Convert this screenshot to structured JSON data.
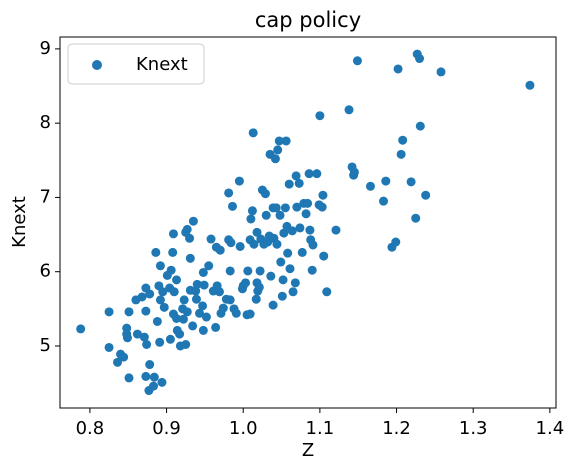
{
  "chart_data": {
    "type": "scatter",
    "title": "cap policy",
    "x_label": "Z",
    "y_label": "Knext",
    "legend": "upper left",
    "x": [
      0.788,
      0.825,
      0.825,
      0.836,
      0.84,
      0.844,
      0.848,
      0.848,
      0.849,
      0.851,
      0.851,
      0.86,
      0.862,
      0.868,
      0.871,
      0.873,
      0.873,
      0.873,
      0.874,
      0.877,
      0.878,
      0.878,
      0.883,
      0.884,
      0.886,
      0.888,
      0.89,
      0.891,
      0.892,
      0.892,
      0.894,
      0.895,
      0.897,
      0.901,
      0.904,
      0.905,
      0.906,
      0.908,
      0.909,
      0.909,
      0.91,
      0.913,
      0.913,
      0.914,
      0.917,
      0.918,
      0.921,
      0.922,
      0.923,
      0.925,
      0.925,
      0.927,
      0.927,
      0.93,
      0.931,
      0.931,
      0.934,
      0.935,
      0.938,
      0.939,
      0.94,
      0.943,
      0.947,
      0.948,
      0.948,
      0.949,
      0.952,
      0.955,
      0.958,
      0.961,
      0.964,
      0.965,
      0.966,
      0.969,
      0.97,
      0.971,
      0.974,
      0.978,
      0.981,
      0.981,
      0.983,
      0.983,
      0.984,
      0.986,
      0.988,
      0.991,
      0.995,
      0.996,
      0.999,
      1.0,
      1.003,
      1.005,
      1.006,
      1.009,
      1.009,
      1.01,
      1.012,
      1.013,
      1.014,
      1.017,
      1.018,
      1.018,
      1.019,
      1.021,
      1.022,
      1.023,
      1.025,
      1.027,
      1.029,
      1.03,
      1.032,
      1.034,
      1.035,
      1.036,
      1.039,
      1.039,
      1.04,
      1.042,
      1.043,
      1.044,
      1.045,
      1.047,
      1.048,
      1.049,
      1.051,
      1.052,
      1.053,
      1.055,
      1.056,
      1.057,
      1.058,
      1.06,
      1.061,
      1.064,
      1.065,
      1.068,
      1.069,
      1.07,
      1.073,
      1.074,
      1.077,
      1.079,
      1.082,
      1.084,
      1.086,
      1.087,
      1.088,
      1.09,
      1.091,
      1.096,
      1.099,
      1.1,
      1.103,
      1.104,
      1.105,
      1.109,
      1.121,
      1.138,
      1.142,
      1.144,
      1.145,
      1.149,
      1.166,
      1.183,
      1.186,
      1.194,
      1.199,
      1.202,
      1.206,
      1.208,
      1.219,
      1.225,
      1.227,
      1.23,
      1.231,
      1.238,
      1.258,
      1.374
    ],
    "series": [
      {
        "name": "Knext",
        "color": "#1f77b4",
        "values": [
          5.23,
          5.46,
          4.98,
          4.78,
          4.89,
          4.85,
          5.24,
          5.16,
          5.11,
          5.46,
          4.57,
          5.62,
          5.16,
          5.66,
          5.12,
          5.47,
          5.78,
          4.59,
          5.02,
          4.4,
          4.75,
          5.7,
          4.46,
          4.58,
          6.26,
          5.33,
          5.81,
          5.05,
          6.08,
          5.62,
          4.51,
          5.73,
          5.52,
          5.95,
          5.78,
          5.09,
          6.02,
          6.26,
          6.51,
          5.43,
          5.73,
          5.89,
          5.37,
          5.21,
          5.16,
          5.0,
          5.5,
          5.36,
          5.62,
          6.53,
          5.02,
          6.57,
          5.46,
          6.45,
          5.75,
          6.18,
          5.27,
          6.68,
          5.74,
          5.63,
          5.83,
          5.44,
          5.54,
          5.99,
          5.21,
          5.82,
          5.39,
          6.08,
          6.44,
          5.74,
          5.25,
          6.33,
          5.81,
          5.73,
          6.29,
          5.44,
          5.51,
          5.63,
          6.43,
          7.06,
          5.62,
          6.01,
          6.39,
          6.88,
          5.5,
          5.44,
          7.22,
          6.34,
          5.77,
          5.81,
          5.85,
          5.42,
          6.01,
          6.43,
          5.43,
          6.71,
          6.82,
          7.87,
          6.37,
          5.63,
          5.85,
          6.53,
          5.74,
          5.79,
          6.01,
          6.44,
          7.1,
          6.37,
          7.05,
          6.76,
          6.4,
          6.48,
          7.58,
          5.94,
          6.86,
          5.55,
          6.45,
          7.52,
          6.86,
          6.37,
          7.64,
          7.76,
          6.76,
          6.13,
          5.67,
          5.89,
          6.52,
          6.86,
          7.76,
          6.61,
          6.25,
          7.18,
          6.04,
          6.55,
          5.73,
          5.85,
          7.29,
          6.87,
          7.19,
          6.59,
          6.26,
          6.92,
          6.78,
          6.92,
          7.32,
          6.56,
          6.43,
          6.02,
          6.36,
          7.32,
          6.9,
          8.1,
          6.87,
          7.03,
          6.21,
          5.73,
          6.56,
          8.18,
          7.41,
          7.3,
          7.34,
          8.84,
          7.15,
          6.95,
          7.22,
          6.33,
          6.4,
          8.73,
          7.58,
          7.77,
          7.21,
          6.72,
          8.93,
          8.87,
          7.96,
          7.03,
          8.69,
          8.51
        ]
      }
    ],
    "xlim": [
      0.761,
      1.408
    ],
    "ylim": [
      4.165,
      9.16
    ],
    "xticks": [
      0.8,
      0.9,
      {
        "value": 1,
        "label": "1.0"
      },
      1.1,
      1.2,
      1.3,
      1.4
    ],
    "yticks": [
      5,
      6,
      7,
      8,
      9
    ]
  }
}
